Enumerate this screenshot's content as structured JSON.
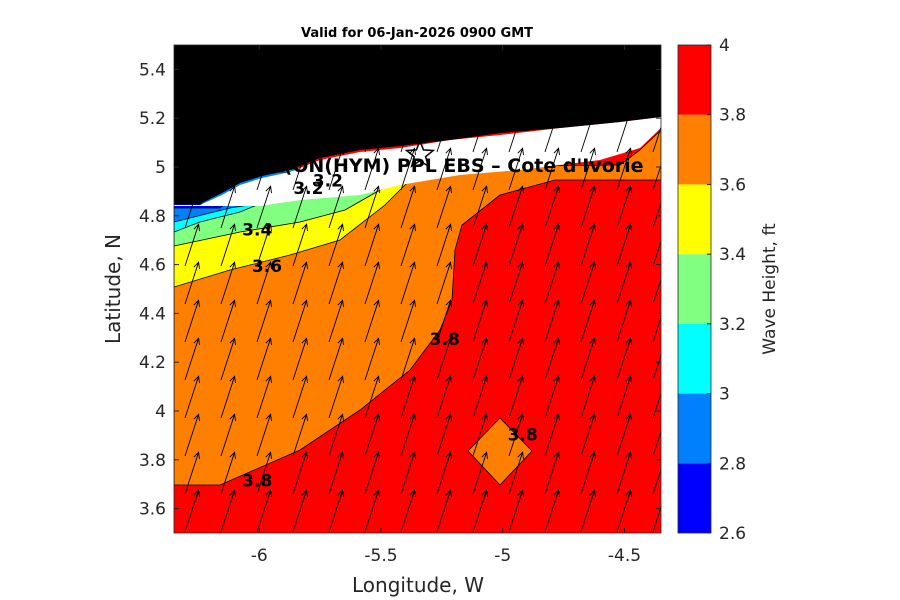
{
  "chart_data": {
    "type": "heatmap",
    "title": "Valid for 06-Jan-2026 0900 GMT",
    "xlabel": "Longitude, W",
    "ylabel": "Latitude, N",
    "xlim": [
      -6.35,
      -4.35
    ],
    "ylim": [
      3.5,
      5.5
    ],
    "xticks": [
      -6,
      -5.5,
      -5,
      -4.5
    ],
    "yticks": [
      3.6,
      3.8,
      4,
      4.2,
      4.4,
      4.6,
      4.8,
      5,
      5.2,
      5.4
    ],
    "colorbar": {
      "label": "Wave Height, ft",
      "range": [
        2.6,
        4.0
      ],
      "ticks": [
        2.6,
        2.8,
        3,
        3.2,
        3.4,
        3.6,
        3.8,
        4
      ],
      "colors": [
        "#0000ff",
        "#0080ff",
        "#00ffff",
        "#80ff80",
        "#ffff00",
        "#ff8000",
        "#ff0000"
      ]
    },
    "contour_labels": [
      {
        "text": "3.2",
        "lon": -5.86,
        "lat": 4.89
      },
      {
        "text": "3.2",
        "lon": -5.78,
        "lat": 4.92
      },
      {
        "text": "3.4",
        "lon": -6.07,
        "lat": 4.72
      },
      {
        "text": "3.6",
        "lon": -6.03,
        "lat": 4.57
      },
      {
        "text": "3.8",
        "lon": -5.3,
        "lat": 4.27
      },
      {
        "text": "3.8",
        "lon": -4.98,
        "lat": 3.88
      },
      {
        "text": "3.8",
        "lon": -6.07,
        "lat": 3.69
      }
    ],
    "annotation": {
      "text": "(ON(HYM) PPL EBS – Cote d'Ivorie",
      "lon": -5.9,
      "lat": 4.98
    },
    "station": {
      "lon": -5.34,
      "lat": 5.05
    },
    "wind_arrows": "uniform northward-northeastward swell direction vectors across the domain"
  }
}
